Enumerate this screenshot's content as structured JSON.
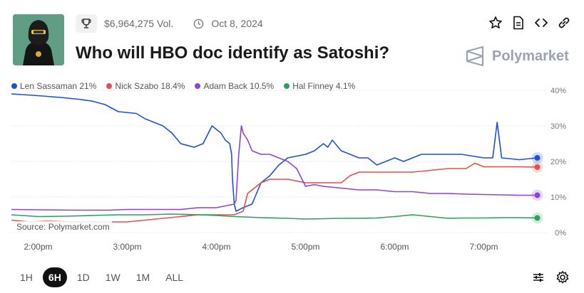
{
  "header": {
    "volume": "$6,964,275 Vol.",
    "date": "Oct 8, 2024",
    "title": "Who will HBO doc identify as Satoshi?",
    "brand": "Polymarket"
  },
  "icons": {
    "trophy": "trophy-icon",
    "clock": "clock-icon",
    "star": "star-icon",
    "document": "document-icon",
    "embed": "embed-code-icon",
    "link": "link-icon",
    "settings": "settings-icon",
    "sliders": "sliders-icon"
  },
  "footer": {
    "source": "Source: Polymarket.com",
    "ranges": [
      "1H",
      "6H",
      "1D",
      "1W",
      "1M",
      "ALL"
    ],
    "active_range": "6H"
  },
  "chart_data": {
    "type": "line",
    "x_ticks": [
      "2:00pm",
      "3:00pm",
      "4:00pm",
      "5:00pm",
      "6:00pm",
      "7:00pm"
    ],
    "y_ticks": [
      "0%",
      "10%",
      "20%",
      "30%",
      "40%"
    ],
    "ylim": [
      0,
      40
    ],
    "grid": "horizontal dotted",
    "legend_position": "top-left",
    "series": [
      {
        "name": "Len Sassaman",
        "value_label": "21%",
        "color": "#1f4fd8",
        "points": [
          [
            13.7,
            39
          ],
          [
            14.0,
            38.5
          ],
          [
            14.25,
            38
          ],
          [
            14.45,
            37.5
          ],
          [
            14.6,
            37
          ],
          [
            14.75,
            36
          ],
          [
            14.9,
            34
          ],
          [
            15.1,
            33.5
          ],
          [
            15.2,
            32
          ],
          [
            15.4,
            30
          ],
          [
            15.5,
            28
          ],
          [
            15.6,
            25
          ],
          [
            15.75,
            24
          ],
          [
            15.85,
            25
          ],
          [
            15.95,
            30
          ],
          [
            16.05,
            28
          ],
          [
            16.1,
            26
          ],
          [
            16.15,
            25
          ],
          [
            16.17,
            22
          ],
          [
            16.18,
            15
          ],
          [
            16.2,
            8
          ],
          [
            16.22,
            6
          ],
          [
            16.3,
            7
          ],
          [
            16.4,
            8
          ],
          [
            16.5,
            14
          ],
          [
            16.6,
            16
          ],
          [
            16.7,
            19
          ],
          [
            16.8,
            21
          ],
          [
            16.9,
            21.5
          ],
          [
            17.0,
            22
          ],
          [
            17.1,
            23
          ],
          [
            17.2,
            25
          ],
          [
            17.25,
            24
          ],
          [
            17.3,
            26
          ],
          [
            17.4,
            23
          ],
          [
            17.6,
            21
          ],
          [
            17.7,
            21
          ],
          [
            17.8,
            19
          ],
          [
            17.9,
            20
          ],
          [
            18.0,
            21
          ],
          [
            18.1,
            20
          ],
          [
            18.2,
            21
          ],
          [
            18.3,
            22
          ],
          [
            18.4,
            22
          ],
          [
            18.5,
            22
          ],
          [
            18.6,
            22
          ],
          [
            18.75,
            22
          ],
          [
            19.0,
            21
          ],
          [
            19.1,
            21
          ],
          [
            19.15,
            31
          ],
          [
            19.2,
            21
          ],
          [
            19.4,
            20.5
          ],
          [
            19.6,
            21
          ]
        ]
      },
      {
        "name": "Nick Szabo",
        "value_label": "18.4%",
        "color": "#e2514c",
        "points": [
          [
            13.7,
            3.5
          ],
          [
            13.9,
            3.0
          ],
          [
            14.1,
            3.2
          ],
          [
            14.4,
            3.0
          ],
          [
            14.8,
            3.0
          ],
          [
            15.0,
            3.0
          ],
          [
            15.2,
            3.5
          ],
          [
            15.4,
            4.0
          ],
          [
            15.6,
            4.5
          ],
          [
            15.8,
            5.0
          ],
          [
            16.0,
            5.0
          ],
          [
            16.2,
            5.0
          ],
          [
            16.3,
            6
          ],
          [
            16.35,
            11
          ],
          [
            16.4,
            12
          ],
          [
            16.5,
            14
          ],
          [
            16.6,
            15
          ],
          [
            16.8,
            15
          ],
          [
            17.0,
            14
          ],
          [
            17.2,
            14
          ],
          [
            17.4,
            14
          ],
          [
            17.5,
            16
          ],
          [
            17.6,
            17
          ],
          [
            17.8,
            17
          ],
          [
            18.0,
            17
          ],
          [
            18.2,
            17
          ],
          [
            18.4,
            17.5
          ],
          [
            18.6,
            18
          ],
          [
            18.8,
            18
          ],
          [
            18.9,
            19.5
          ],
          [
            19.0,
            18.5
          ],
          [
            19.2,
            18.5
          ],
          [
            19.4,
            18.5
          ],
          [
            19.6,
            18.4
          ]
        ]
      },
      {
        "name": "Adam Back",
        "value_label": "10.5%",
        "color": "#8b44d6",
        "points": [
          [
            13.7,
            6.5
          ],
          [
            14.0,
            6.4
          ],
          [
            14.4,
            6.3
          ],
          [
            14.8,
            6.3
          ],
          [
            15.0,
            6.5
          ],
          [
            15.3,
            6.5
          ],
          [
            15.6,
            6.5
          ],
          [
            15.8,
            7.0
          ],
          [
            16.0,
            7.0
          ],
          [
            16.1,
            7.5
          ],
          [
            16.2,
            8
          ],
          [
            16.22,
            9
          ],
          [
            16.25,
            22
          ],
          [
            16.28,
            30
          ],
          [
            16.3,
            28
          ],
          [
            16.35,
            26
          ],
          [
            16.4,
            23
          ],
          [
            16.5,
            22
          ],
          [
            16.6,
            22
          ],
          [
            16.7,
            21
          ],
          [
            16.8,
            20
          ],
          [
            16.9,
            18
          ],
          [
            17.0,
            13
          ],
          [
            17.1,
            13.5
          ],
          [
            17.2,
            13
          ],
          [
            17.4,
            12.5
          ],
          [
            17.6,
            12
          ],
          [
            17.8,
            12
          ],
          [
            18.0,
            11.5
          ],
          [
            18.2,
            11.5
          ],
          [
            18.4,
            11
          ],
          [
            18.6,
            11
          ],
          [
            18.8,
            10.8
          ],
          [
            19.0,
            10.7
          ],
          [
            19.2,
            10.6
          ],
          [
            19.4,
            10.5
          ],
          [
            19.6,
            10.5
          ]
        ]
      },
      {
        "name": "Hal Finney",
        "value_label": "4.1%",
        "color": "#2e9e5b",
        "points": [
          [
            13.7,
            5.0
          ],
          [
            14.0,
            4.5
          ],
          [
            14.3,
            4.6
          ],
          [
            14.6,
            4.8
          ],
          [
            14.9,
            5.0
          ],
          [
            15.2,
            5.0
          ],
          [
            15.5,
            5.2
          ],
          [
            15.8,
            5.0
          ],
          [
            16.0,
            4.8
          ],
          [
            16.2,
            4.5
          ],
          [
            16.3,
            4.4
          ],
          [
            16.5,
            4.2
          ],
          [
            16.8,
            4.0
          ],
          [
            17.0,
            3.8
          ],
          [
            17.2,
            3.9
          ],
          [
            17.4,
            4.0
          ],
          [
            17.6,
            4.0
          ],
          [
            17.8,
            4.1
          ],
          [
            18.0,
            4.5
          ],
          [
            18.2,
            5.0
          ],
          [
            18.4,
            4.5
          ],
          [
            18.6,
            4.0
          ],
          [
            18.8,
            4.1
          ],
          [
            19.0,
            4.1
          ],
          [
            19.2,
            4.2
          ],
          [
            19.4,
            4.2
          ],
          [
            19.6,
            4.1
          ]
        ]
      }
    ]
  }
}
